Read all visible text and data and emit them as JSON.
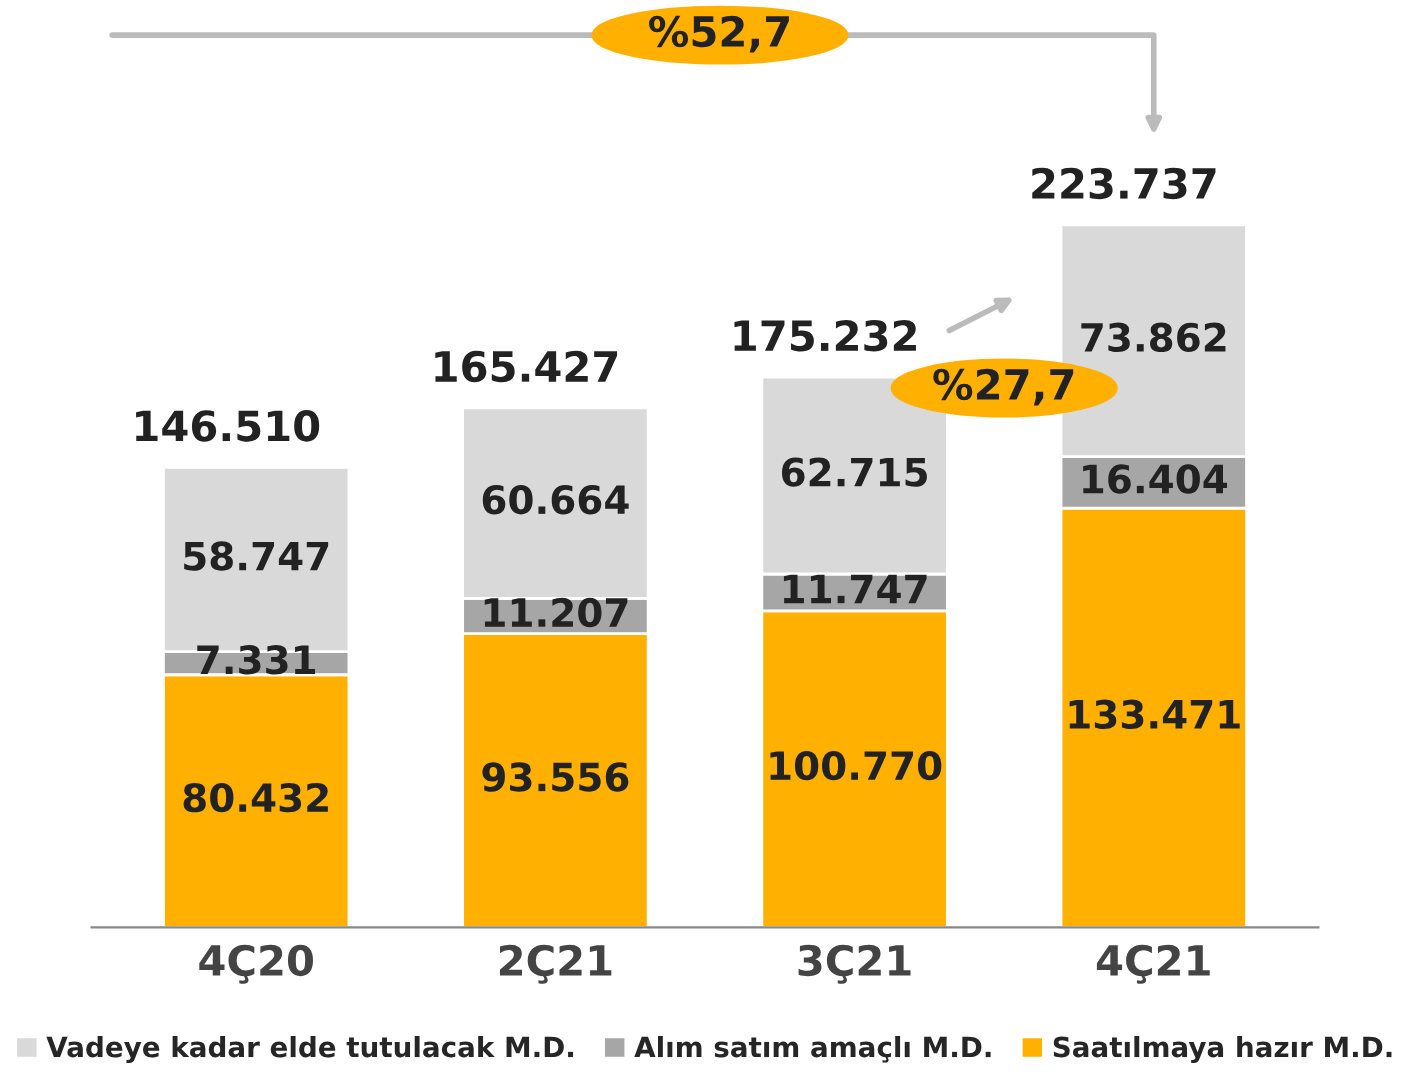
{
  "chart_data": {
    "type": "bar",
    "stacked": true,
    "categories": [
      "4Ç20",
      "2Ç21",
      "3Ç21",
      "4Ç21"
    ],
    "series": [
      {
        "name": "Saatılmaya hazır M.D.",
        "color": "#ffb000",
        "values": [
          80432,
          93556,
          100770,
          133471
        ],
        "value_labels": [
          "80.432",
          "93.556",
          "100.770",
          "133.471"
        ]
      },
      {
        "name": "Alım satım amaçlı M.D.",
        "color": "#a6a6a6",
        "values": [
          7331,
          11207,
          11747,
          16404
        ],
        "value_labels": [
          "7.331",
          "11.207",
          "11.747",
          "16.404"
        ]
      },
      {
        "name": "Vadeye kadar elde tutulacak M.D.",
        "color": "#d9d9d9",
        "values": [
          58747,
          60664,
          62715,
          73862
        ],
        "value_labels": [
          "58.747",
          "60.664",
          "62.715",
          "73.862"
        ]
      }
    ],
    "totals": [
      "146.510",
      "165.427",
      "175.232",
      "223.737"
    ],
    "annotations": [
      "%52,7",
      "%27,7"
    ],
    "legend": "bottom",
    "grid": false
  }
}
